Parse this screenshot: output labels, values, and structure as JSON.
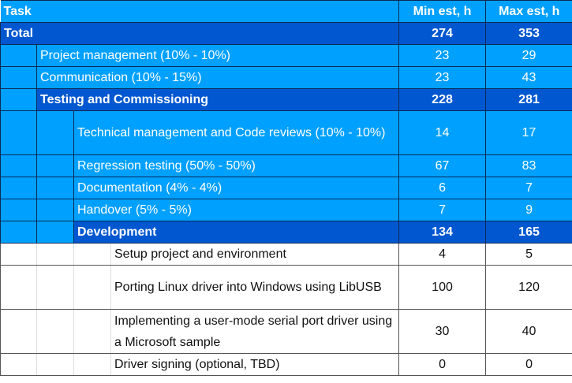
{
  "header": {
    "task": "Task",
    "min": "Min est, h",
    "max": "Max est, h"
  },
  "rows": [
    {
      "level": 0,
      "style": "sum",
      "task": "Total",
      "min": "274",
      "max": "353"
    },
    {
      "level": 1,
      "style": "lt",
      "task": "Project management (10% - 10%)",
      "min": "23",
      "max": "29"
    },
    {
      "level": 1,
      "style": "lt",
      "task": "Communication (10% - 15%)",
      "min": "23",
      "max": "43"
    },
    {
      "level": 1,
      "style": "sum",
      "task": "Testing and Commissioning",
      "min": "228",
      "max": "281"
    },
    {
      "level": 2,
      "style": "lt",
      "tall": true,
      "task": "Technical management and Code reviews (10% - 10%)",
      "min": "14",
      "max": "17"
    },
    {
      "level": 2,
      "style": "lt",
      "task": "Regression testing (50% - 50%)",
      "min": "67",
      "max": "83"
    },
    {
      "level": 2,
      "style": "lt",
      "task": "Documentation (4% - 4%)",
      "min": "6",
      "max": "7"
    },
    {
      "level": 2,
      "style": "lt",
      "task": "Handover (5% - 5%)",
      "min": "7",
      "max": "9"
    },
    {
      "level": 2,
      "style": "sum",
      "task": "Development",
      "min": "134",
      "max": "165"
    },
    {
      "level": 3,
      "style": "wh",
      "task": "Setup project and environment",
      "min": "4",
      "max": "5"
    },
    {
      "level": 3,
      "style": "wh",
      "tall": true,
      "task": "Porting Linux driver into Windows using LibUSB",
      "min": "100",
      "max": "120"
    },
    {
      "level": 3,
      "style": "wh",
      "tall": true,
      "task": "Implementing a user-mode serial port driver using a Microsoft sample",
      "min": "30",
      "max": "40"
    },
    {
      "level": 3,
      "style": "wh",
      "task": "Driver signing (optional, TBD)",
      "min": "0",
      "max": "0"
    }
  ],
  "colors": {
    "light": "#00a0ff",
    "dark": "#0057d0"
  }
}
